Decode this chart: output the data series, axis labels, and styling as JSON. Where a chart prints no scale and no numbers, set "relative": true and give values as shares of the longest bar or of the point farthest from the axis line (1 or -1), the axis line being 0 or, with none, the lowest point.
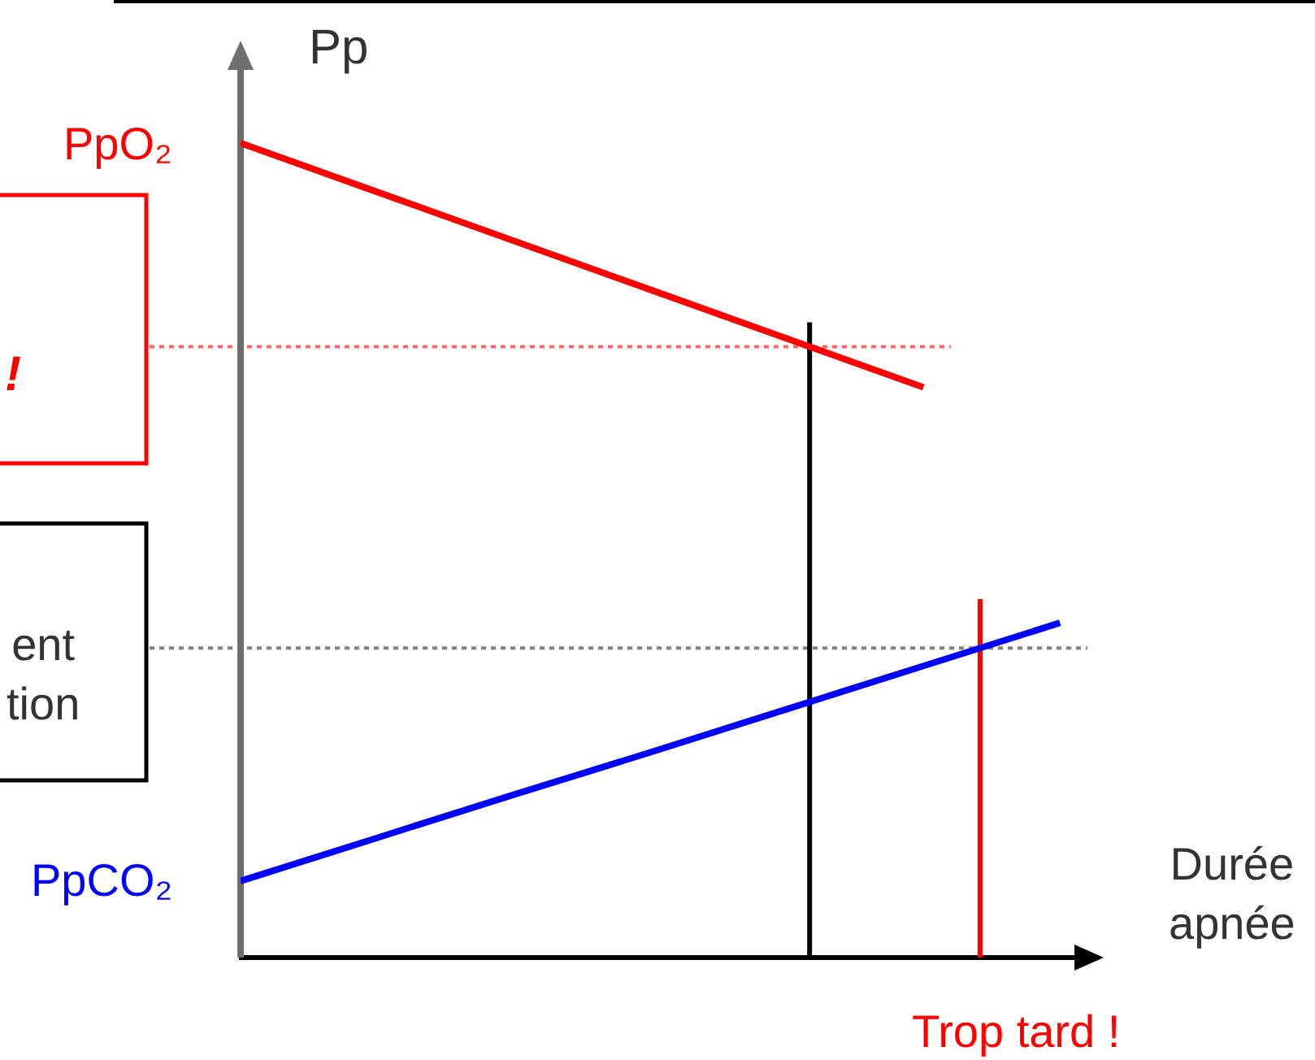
{
  "chart_data": {
    "type": "line",
    "relative": true,
    "ylabel": "Pp",
    "xlabel": "Durée\napnée",
    "categories": [
      null,
      null,
      null,
      null,
      null,
      null,
      null
    ],
    "series": [
      {
        "name": "PpO₂",
        "color": "#ff0000",
        "values": [
          1,
          0.94,
          0.88,
          0.82,
          0.76,
          0.7,
          null
        ]
      },
      {
        "name": "PpCO₂",
        "color": "#0000ff",
        "values": [
          0.094,
          0.147,
          0.2,
          0.252,
          0.305,
          0.358,
          0.411
        ]
      }
    ],
    "ref_lines": [
      {
        "axis": "y",
        "value": 0.75,
        "color": "#ff6666",
        "line_style": "dotted"
      },
      {
        "axis": "y",
        "value": 0.38,
        "color": "#808080",
        "line_style": "dotted"
      }
    ],
    "annotations": [
      "!",
      "ent\ntion",
      "Trop tard !"
    ]
  }
}
